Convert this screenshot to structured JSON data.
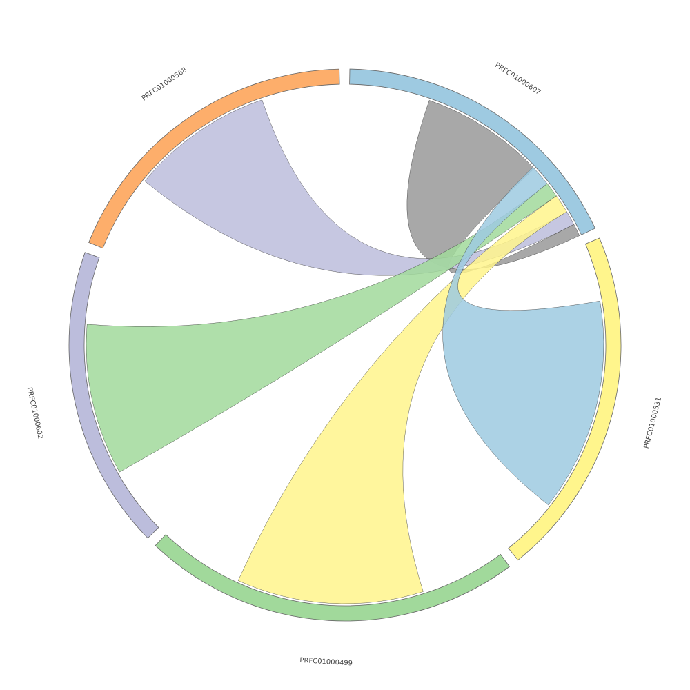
{
  "chart_data": {
    "type": "chord",
    "nodes": [
      {
        "name": "PRFC01000607",
        "color": "#9ecae1",
        "value": 64
      },
      {
        "name": "PRFC01000531",
        "color": "#fff58c",
        "value": 74
      },
      {
        "name": "PRFC01000499",
        "color": "#a1d99b",
        "value": 80
      },
      {
        "name": "PRFC01000602",
        "color": "#bcbddc",
        "value": 64
      },
      {
        "name": "PRFC01000568",
        "color": "#fdae6b",
        "value": 67
      }
    ],
    "links": [
      {
        "source": "PRFC01000607",
        "target": "PRFC01000607",
        "value": 28,
        "color": "#999999"
      },
      {
        "source": "PRFC01000607",
        "target": "PRFC01000568",
        "value": 32,
        "color": "#bcbddc"
      },
      {
        "source": "PRFC01000607",
        "target": "PRFC01000499",
        "value": 42,
        "color": "#fff58c"
      },
      {
        "source": "PRFC01000607",
        "target": "PRFC01000602",
        "value": 34,
        "color": "#a1d99b"
      },
      {
        "source": "PRFC01000607",
        "target": "PRFC01000531",
        "value": 48,
        "color": "#9ecae1"
      }
    ]
  }
}
